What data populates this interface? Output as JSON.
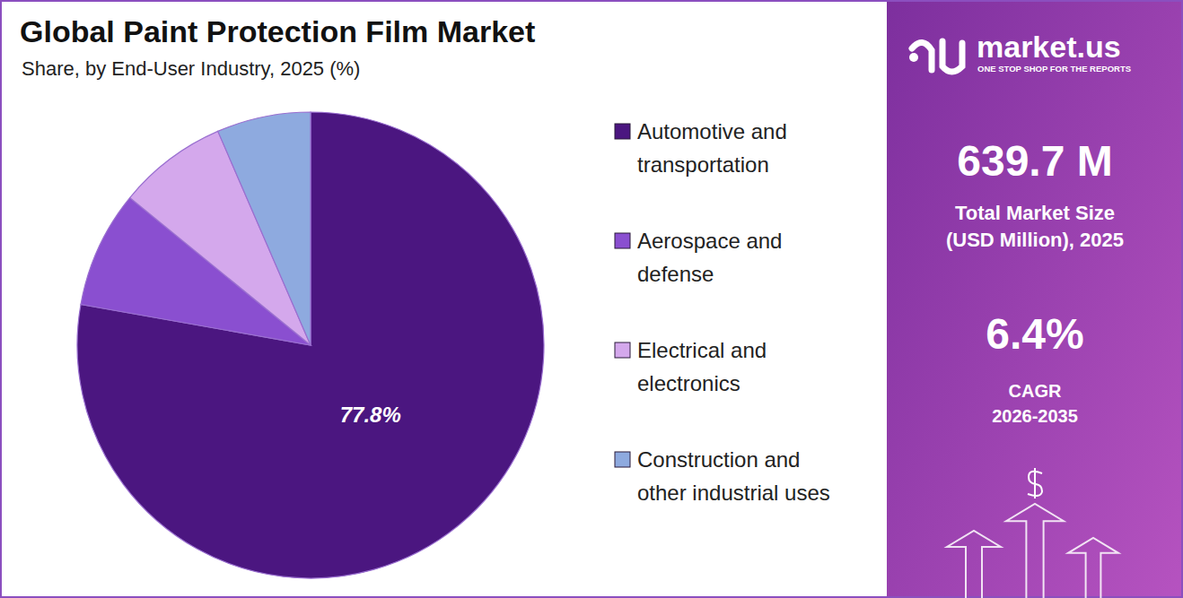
{
  "chart_data": {
    "type": "pie",
    "title": "Global Paint Protection Film Market",
    "subtitle": "Share, by End-User Industry, 2025 (%)",
    "categories": [
      "Automotive and transportation",
      "Aerospace and defense",
      "Electrical and electronics",
      "Construction and other industrial uses"
    ],
    "values": [
      77.8,
      8.1,
      7.6,
      6.5
    ],
    "value_labels": [
      "77.8%",
      null,
      null,
      null
    ],
    "colors": [
      "#4b1680",
      "#8a4fd0",
      "#d4a8ec",
      "#8eaadf"
    ],
    "data_labels": true,
    "legend": "right"
  },
  "side_panel": {
    "brand": "market.us",
    "tagline": "ONE STOP SHOP FOR THE REPORTS",
    "market_size": "639.7 M",
    "market_size_label": [
      "Total Market Size",
      "(USD Million), 2025"
    ],
    "cagr": "6.4%",
    "cagr_label": [
      "CAGR",
      "2026-2035"
    ]
  }
}
